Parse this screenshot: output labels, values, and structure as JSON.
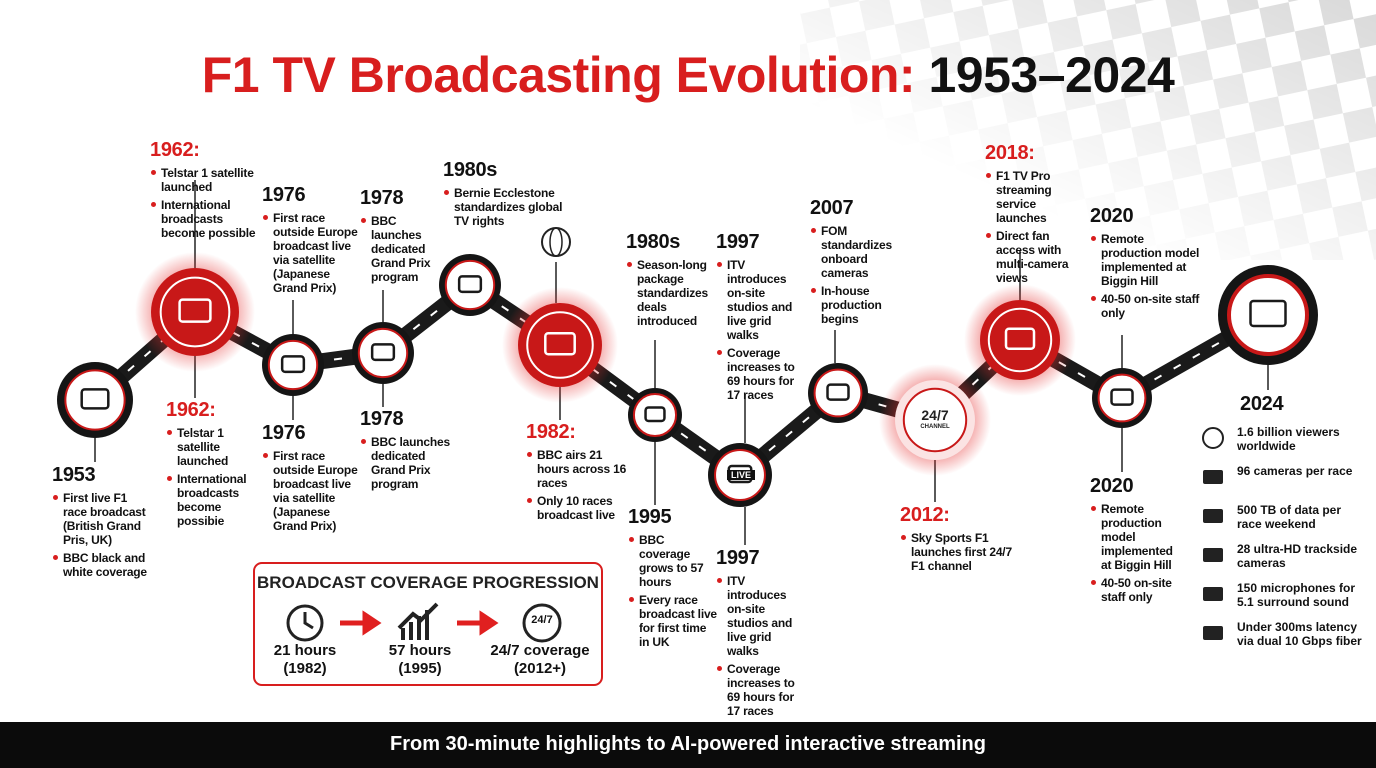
{
  "title": {
    "main": "F1 TV Broadcasting Evolution:",
    "years": "1953–2024"
  },
  "groups": [
    {
      "year": "1953",
      "items": [
        "First live F1 race broadcast (British Grand Pris, UK)",
        "BBC black and white coverage"
      ]
    },
    {
      "year": "1962:",
      "items": [
        "Telstar 1 satellite launched",
        "International broadcasts become possible"
      ]
    },
    {
      "year": "1962:",
      "items": [
        "Telstar 1 satellite launched",
        "International broadcasts become possibie"
      ]
    },
    {
      "year": "1976",
      "items": [
        "First race outside Europe broadcast live via satellite (Japanese Grand Prix)"
      ]
    },
    {
      "year": "1976",
      "items": [
        "First race outside Europe broadcast live via satellite (Japanese Grand Prix)"
      ]
    },
    {
      "year": "1978",
      "items": [
        "BBC launches dedicated Grand Prix program"
      ]
    },
    {
      "year": "1978",
      "items": [
        "BBC launches dedicated Grand Prix program"
      ]
    },
    {
      "year": "1980s",
      "items": [
        "Bernie Ecclestone standardizes global TV rights"
      ]
    },
    {
      "year": "1980s",
      "items": [
        "Season-long package standardizes deals introduced"
      ]
    },
    {
      "year": "1982:",
      "items": [
        "BBC airs 21 hours across 16 races",
        "Only 10 races broadcast live"
      ]
    },
    {
      "year": "1995",
      "items": [
        "BBC coverage grows to 57 hours",
        "Every race broadcast live for first time in UK"
      ]
    },
    {
      "year": "1997",
      "items": [
        "ITV introduces on-site studios and live grid walks",
        "Coverage increases to 69 hours for 17 races"
      ]
    },
    {
      "year": "1997",
      "items": [
        "ITV introduces on-site studios and live grid walks",
        "Coverage increases to 69 hours for 17 races"
      ]
    },
    {
      "year": "2007",
      "items": [
        "FOM standardizes onboard cameras",
        "In-house production begins"
      ]
    },
    {
      "year": "2012:",
      "items": [
        "Sky Sports F1 launches first 24/7 F1 channel"
      ]
    },
    {
      "year": "2018:",
      "items": [
        "F1 TV Pro streaming service launches",
        "Direct fan access with multi-camera views"
      ]
    },
    {
      "year": "2020",
      "items": [
        "Remote production model implemented at Biggin Hill",
        "40-50 on-site staff only"
      ]
    },
    {
      "year": "2020",
      "items": [
        "Remote production model implemented at Biggin Hill",
        "40-50 on-site staff only"
      ]
    }
  ],
  "latest": {
    "year": "2024",
    "stats": [
      "1.6 billion viewers worldwide",
      "96 cameras per race",
      "500 TB of data per race weekend",
      "28 ultra-HD trackside cameras",
      "150 microphones for 5.1 surround sound",
      "Under 300ms latency via dual 10 Gbps fiber"
    ]
  },
  "icon_texts": {
    "live": "LIVE",
    "channel_247": "24/7",
    "channel": "CHANNEL",
    "box_247": "24/7"
  },
  "coverage": {
    "title": "BROADCAST COVERAGE PROGRESSION",
    "steps": [
      {
        "value": "21 hours",
        "period": "(1982)"
      },
      {
        "value": "57 hours",
        "period": "(1995)"
      },
      {
        "value": "24/7 coverage",
        "period": "(2012+)"
      }
    ]
  },
  "footer": "From 30-minute highlights to AI-powered interactive streaming"
}
